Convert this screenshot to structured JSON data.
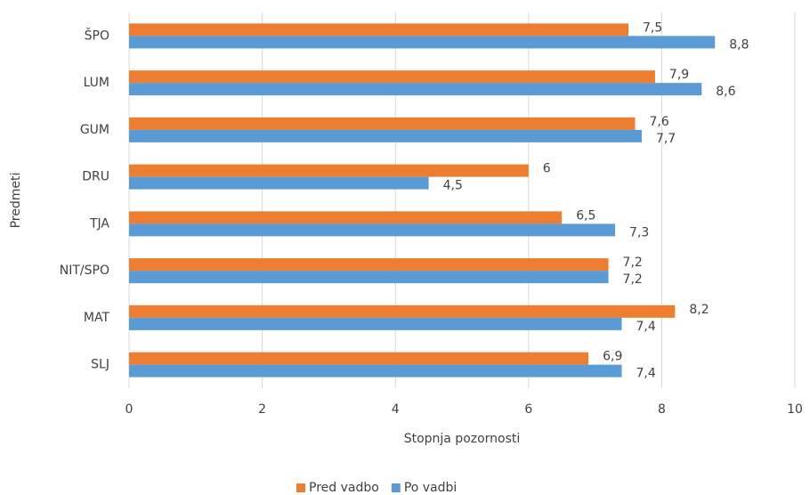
{
  "chart_data": {
    "type": "hbar",
    "categories": [
      "ŠPO",
      "LUM",
      "GUM",
      "DRU",
      "TJA",
      "NIT/SPO",
      "MAT",
      "SLJ"
    ],
    "series": [
      {
        "name": "Pred vadbo",
        "color": "#ed7d31",
        "values": [
          7.5,
          7.9,
          7.6,
          6,
          6.5,
          7.2,
          8.2,
          6.9
        ],
        "value_labels": [
          "7,5",
          "7,9",
          "7,6",
          "6",
          "6,5",
          "7,2",
          "8,2",
          "6,9"
        ]
      },
      {
        "name": "Po vadbi",
        "color": "#5b9bd5",
        "values": [
          8.8,
          8.6,
          7.7,
          4.5,
          7.3,
          7.2,
          7.4,
          7.4
        ],
        "value_labels": [
          "8,8",
          "8,6",
          "7,7",
          "4,5",
          "7,3",
          "7,2",
          "7,4",
          "7,4"
        ]
      }
    ],
    "xlabel": "Stopnja pozornosti",
    "ylabel": "Predmeti",
    "xlim": [
      0,
      10
    ],
    "xticks": [
      0,
      2,
      4,
      6,
      8,
      10
    ],
    "grid": true,
    "legend": "bottom"
  }
}
